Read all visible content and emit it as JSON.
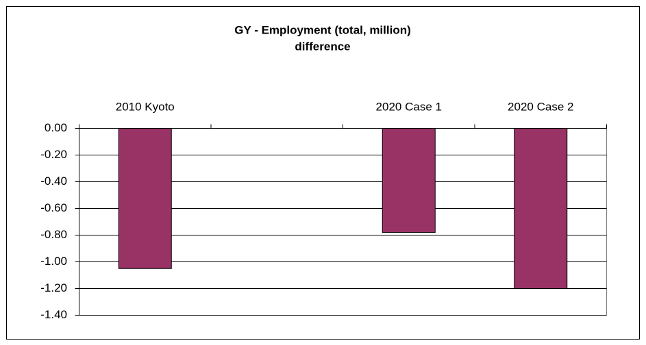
{
  "chart_data": {
    "type": "bar",
    "title": "GY - Employment (total, million)",
    "subtitle": "difference",
    "categories": [
      "2010 Kyoto",
      null,
      "2020 Case 1",
      "2020 Case 2"
    ],
    "values": [
      -1.05,
      null,
      -0.78,
      -1.2
    ],
    "color": "#993366",
    "ylim": [
      -1.4,
      0
    ],
    "yticks": [
      {
        "value": 0,
        "label": "0.00"
      },
      {
        "value": -0.2,
        "label": "-0.20"
      },
      {
        "value": -0.4,
        "label": "-0.40"
      },
      {
        "value": -0.6,
        "label": "-0.60"
      },
      {
        "value": -0.8,
        "label": "-0.80"
      },
      {
        "value": -1,
        "label": "-1.00"
      },
      {
        "value": -1.2,
        "label": "-1.20"
      },
      {
        "value": -1.4,
        "label": "-1.40"
      }
    ],
    "grid": true
  }
}
